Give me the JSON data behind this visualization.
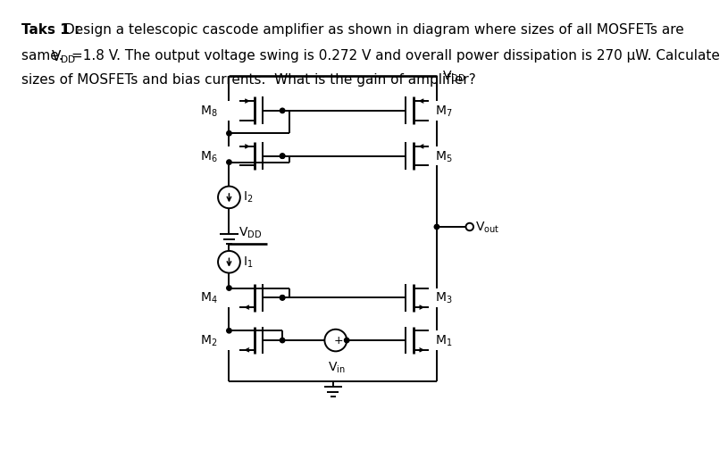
{
  "fig_width": 8.93,
  "fig_height": 6.31,
  "lw": 1.4,
  "lw_thick": 2.0,
  "dot_r": 0.035,
  "ch": 0.2,
  "gb": 0.12,
  "gl": 0.28,
  "sd": 0.22,
  "xLb": 3.55,
  "xRb": 5.85,
  "xLwire": 3.18,
  "xRwire": 6.18,
  "xBusL": 3.18,
  "xBusR": 6.18,
  "yTop": 5.32,
  "yM8": 4.82,
  "yM7": 4.82,
  "yM6": 4.16,
  "yM5": 4.16,
  "yI2": 3.56,
  "yGnd2": 3.1,
  "yVDDm": 2.88,
  "yI1": 2.62,
  "yM4": 2.1,
  "yM3": 2.1,
  "yM2": 1.48,
  "yM1": 1.48,
  "yBot": 0.88,
  "yVout": 3.13,
  "xVin": 4.72,
  "line1_bold": "Taks 1 : ",
  "line1_rest": "Design a telescopic cascode amplifier as shown in diagram where sizes of all MOSFETs are",
  "line2": "same. V",
  "line2_sub": "DD",
  "line2_rest": "=1.8 V. The output voltage swing is 0.272 V and overall power dissipation is 270 μW. Calculate",
  "line3": "sizes of MOSFETs and bias currents.  What is the gain of amplifier?"
}
